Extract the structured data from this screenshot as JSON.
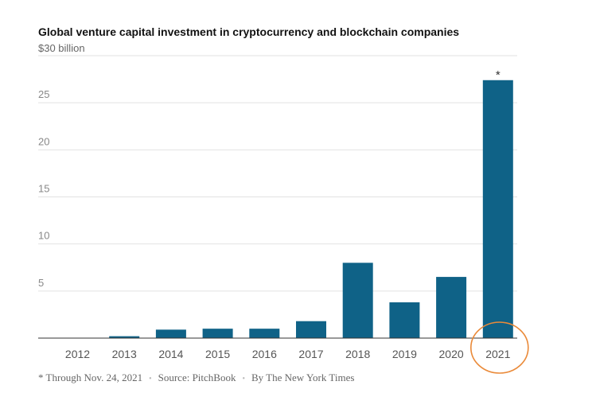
{
  "chart_data": {
    "type": "bar",
    "title": "Global venture capital investment in cryptocurrency and blockchain companies",
    "unit_label": "$30 billion",
    "categories": [
      "2012",
      "2013",
      "2014",
      "2015",
      "2016",
      "2017",
      "2018",
      "2019",
      "2020",
      "2021"
    ],
    "values": [
      0,
      0.2,
      0.9,
      1.0,
      1.0,
      1.8,
      8.0,
      3.8,
      6.5,
      27.4
    ],
    "ylim": [
      0,
      30
    ],
    "yticks": [
      5,
      10,
      15,
      20,
      25
    ],
    "grid": true,
    "bar_color": "#0f6287",
    "annotation": {
      "category": "2021",
      "text": "*"
    },
    "highlight": {
      "category": "2021",
      "shape": "circle",
      "color": "#ea8a39"
    }
  },
  "footer": {
    "note": "* Through Nov. 24, 2021",
    "separator": "•",
    "source": "Source: PitchBook",
    "credit": "By The New York Times"
  }
}
